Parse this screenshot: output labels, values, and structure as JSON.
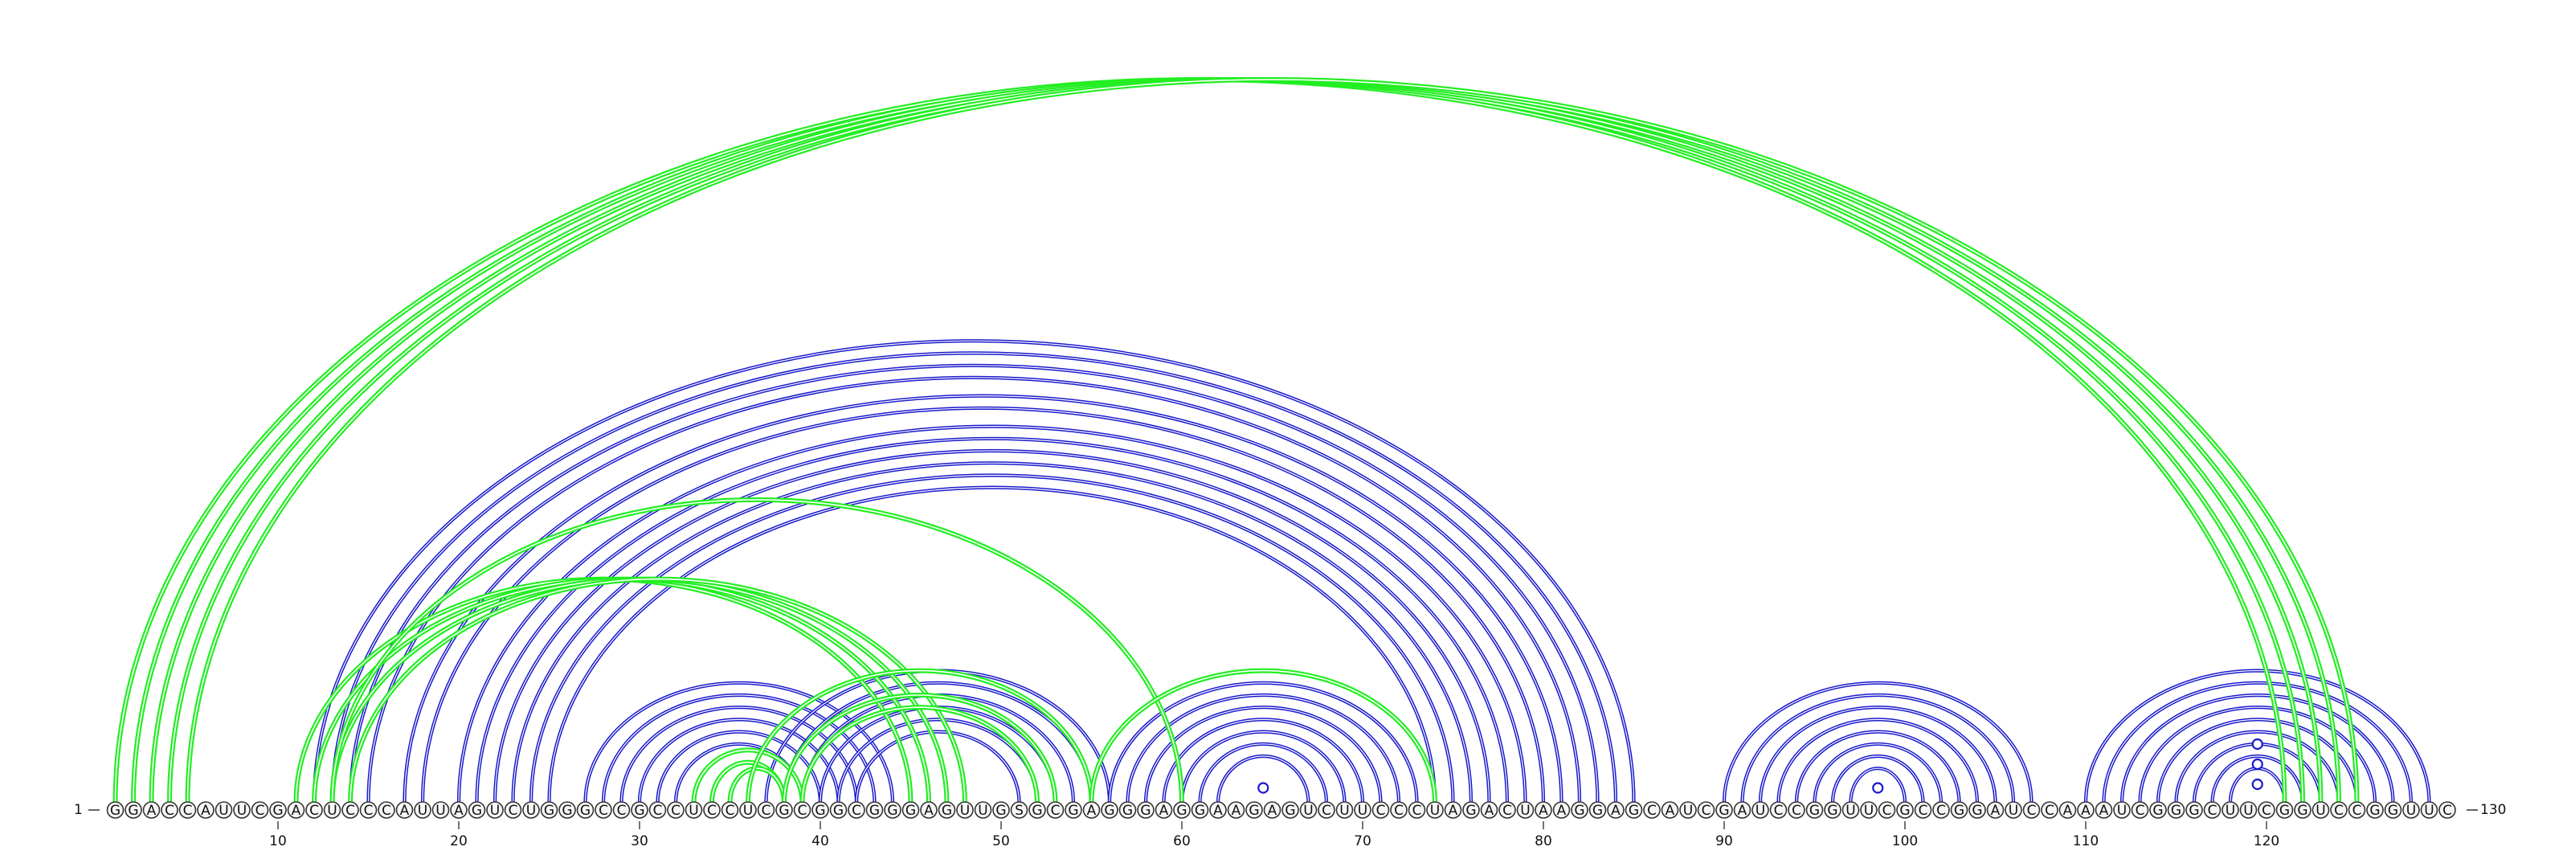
{
  "sequence": "GGACCAUUCGACUCCCAUUAGUCUGGGCCGCCUCCUCGCGGCGGGAGUUGSGCGAGGGAGGAAGAGUCUUCCCUAGACUAAGGAGCAUCGAUCCGGUUCGCCGGAUCCAAAUCGGGCUUCGGUCCGGUUC",
  "start_label": "1",
  "end_label": "130",
  "tick_labels": [
    "10",
    "20",
    "30",
    "40",
    "50",
    "60",
    "70",
    "80",
    "90",
    "100",
    "110",
    "120"
  ],
  "colors": {
    "primary_arcs": "#1a1acc",
    "alternative_arcs": "#22ee22"
  },
  "arc_groups": [
    {
      "color": "primary_arcs",
      "pairs": [
        [
          12,
          85
        ],
        [
          13,
          84
        ],
        [
          14,
          83
        ],
        [
          15,
          82
        ],
        [
          17,
          81
        ],
        [
          18,
          80
        ],
        [
          20,
          79
        ],
        [
          21,
          78
        ],
        [
          22,
          77
        ],
        [
          23,
          76
        ],
        [
          24,
          75
        ],
        [
          25,
          74
        ]
      ]
    },
    {
      "color": "primary_arcs",
      "pairs": [
        [
          27,
          44
        ],
        [
          28,
          43
        ],
        [
          29,
          42
        ],
        [
          30,
          41
        ],
        [
          31,
          40
        ],
        [
          32,
          39
        ]
      ]
    },
    {
      "color": "primary_arcs",
      "pairs": [
        [
          37,
          56
        ],
        [
          38,
          55
        ],
        [
          39,
          54
        ],
        [
          40,
          53
        ],
        [
          41,
          52
        ],
        [
          42,
          51
        ]
      ]
    },
    {
      "color": "primary_arcs",
      "pairs": [
        [
          56,
          73
        ],
        [
          57,
          72
        ],
        [
          58,
          71
        ],
        [
          59,
          70
        ],
        [
          60,
          69
        ],
        [
          61,
          68
        ],
        [
          62,
          67
        ]
      ]
    },
    {
      "color": "primary_arcs",
      "pairs": [
        [
          90,
          107
        ],
        [
          91,
          106
        ],
        [
          92,
          105
        ],
        [
          93,
          104
        ],
        [
          94,
          103
        ],
        [
          95,
          102
        ],
        [
          96,
          101
        ],
        [
          97,
          100
        ]
      ]
    },
    {
      "color": "primary_arcs",
      "pairs": [
        [
          110,
          129
        ],
        [
          111,
          128
        ],
        [
          112,
          127
        ],
        [
          113,
          126
        ],
        [
          114,
          125
        ],
        [
          115,
          124
        ],
        [
          116,
          123
        ],
        [
          117,
          122
        ],
        [
          118,
          121
        ]
      ]
    },
    {
      "color": "alternative_arcs",
      "pairs": [
        [
          1,
          121
        ],
        [
          2,
          122
        ],
        [
          3,
          123
        ],
        [
          4,
          124
        ],
        [
          5,
          125
        ]
      ]
    },
    {
      "color": "alternative_arcs",
      "pairs": [
        [
          11,
          45
        ],
        [
          12,
          46
        ],
        [
          13,
          47
        ],
        [
          14,
          48
        ]
      ]
    },
    {
      "color": "alternative_arcs",
      "pairs": [
        [
          13,
          60
        ]
      ]
    },
    {
      "color": "alternative_arcs",
      "pairs": [
        [
          33,
          39
        ],
        [
          34,
          38
        ],
        [
          35,
          38
        ]
      ]
    },
    {
      "color": "alternative_arcs",
      "pairs": [
        [
          36,
          55
        ],
        [
          38,
          53
        ],
        [
          39,
          52
        ]
      ]
    },
    {
      "color": "alternative_arcs",
      "pairs": [
        [
          55,
          74
        ]
      ]
    }
  ],
  "loop_markers": [
    {
      "color": "primary_arcs",
      "pairs": [
        [
          64,
          65
        ],
        [
          98,
          99
        ],
        [
          119,
          120
        ],
        [
          119,
          120
        ],
        [
          119,
          120
        ]
      ],
      "heights_rel": [
        0.55,
        0.55,
        1.0,
        3.5,
        6.0
      ]
    }
  ]
}
